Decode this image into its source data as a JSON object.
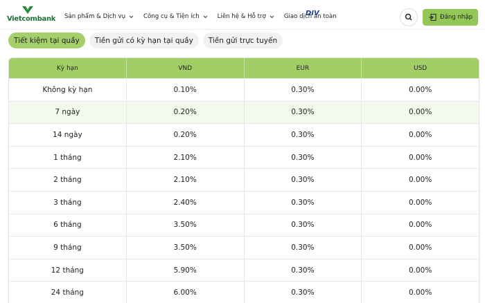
{
  "header": {
    "logo": "Vietcombank",
    "nav": [
      "Sản phẩm & Dịch vụ",
      "Công cụ & Tiện ích",
      "Liên hệ & Hỗ trợ",
      "Giao dịch an toàn"
    ],
    "badge": "DIV",
    "login": "Đăng nhập"
  },
  "tabs": [
    "Tiết kiệm tại quầy",
    "Tiền gửi có kỳ hạn tại quầy",
    "Tiền gửi trực tuyến"
  ],
  "table": {
    "columns": [
      "Kỳ hạn",
      "VND",
      "EUR",
      "USD"
    ],
    "rows": [
      [
        "Không kỳ hạn",
        "0.10%",
        "0.30%",
        "0.00%"
      ],
      [
        "7 ngày",
        "0.20%",
        "0.30%",
        "0.00%"
      ],
      [
        "14 ngày",
        "0.20%",
        "0.30%",
        "0.00%"
      ],
      [
        "1 tháng",
        "2.10%",
        "0.30%",
        "0.00%"
      ],
      [
        "2 tháng",
        "2.10%",
        "0.30%",
        "0.00%"
      ],
      [
        "3 tháng",
        "2.40%",
        "0.30%",
        "0.00%"
      ],
      [
        "6 tháng",
        "3.50%",
        "0.30%",
        "0.00%"
      ],
      [
        "9 tháng",
        "3.50%",
        "0.30%",
        "0.00%"
      ],
      [
        "12 tháng",
        "5.90%",
        "0.30%",
        "0.00%"
      ],
      [
        "24 tháng",
        "6.00%",
        "0.30%",
        "0.00%"
      ]
    ]
  }
}
